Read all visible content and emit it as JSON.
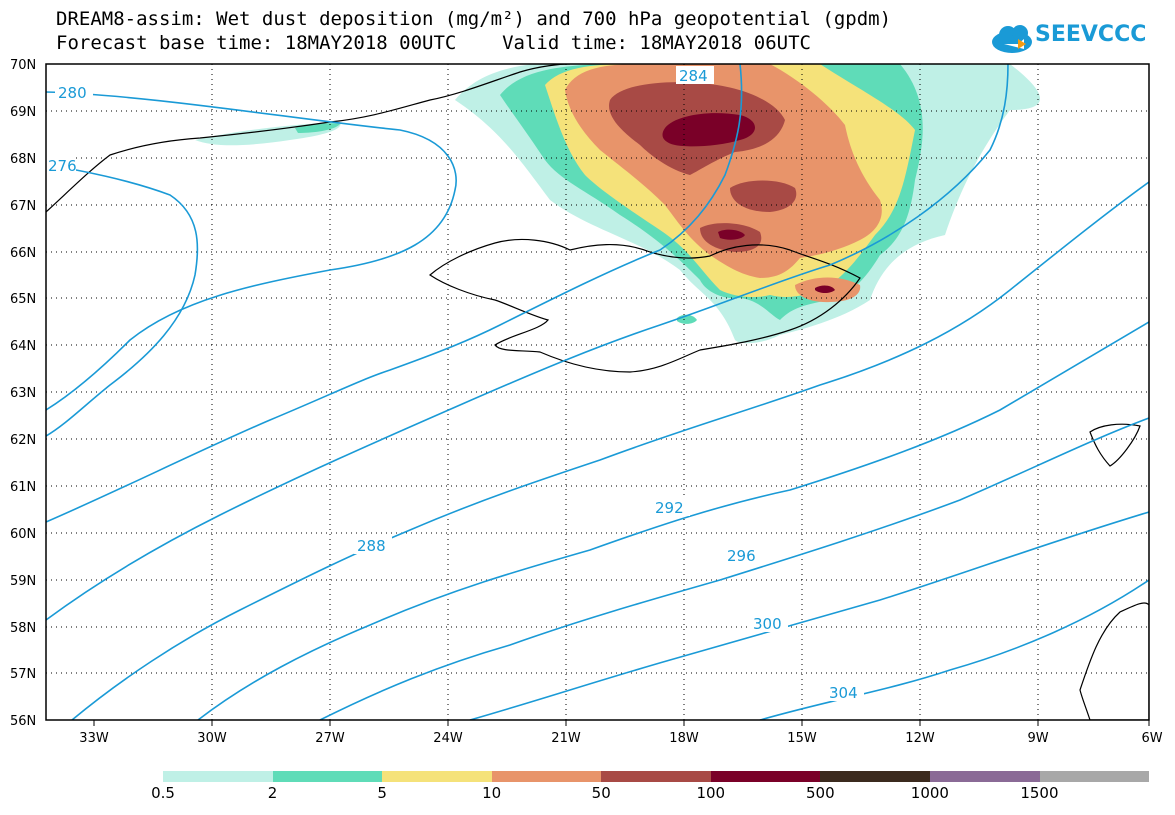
{
  "title": {
    "line1": "DREAM8-assim: Wet dust deposition (mg/m²) and 700 hPa geopotential (gpdm)",
    "line2": "Forecast base time: 18MAY2018 00UTC    Valid time: 18MAY2018 06UTC"
  },
  "logo": {
    "text": "SEEVCCC",
    "color": "#1a9ad6"
  },
  "map": {
    "lon_range": [
      -34,
      -6
    ],
    "lat_range": [
      56,
      70
    ],
    "lat_labels": [
      "70N",
      "69N",
      "68N",
      "67N",
      "66N",
      "65N",
      "64N",
      "63N",
      "62N",
      "61N",
      "60N",
      "59N",
      "58N",
      "57N",
      "56N"
    ],
    "lon_labels": [
      "33W",
      "30W",
      "27W",
      "24W",
      "21W",
      "18W",
      "15W",
      "12W",
      "9W",
      "6W"
    ],
    "contour_color": "#1a9ad6",
    "contour_labels": [
      "280",
      "276",
      "284",
      "288",
      "292",
      "296",
      "300",
      "304"
    ]
  },
  "legend": {
    "colors": [
      "#bff0e6",
      "#5fdcb8",
      "#f5e27a",
      "#e8946a",
      "#a84a45",
      "#7a0028",
      "#3b2a1e",
      "#8a6a96",
      "#a8a8a8"
    ],
    "labels": [
      "0.5",
      "2",
      "5",
      "10",
      "50",
      "100",
      "500",
      "1000",
      "1500"
    ]
  }
}
